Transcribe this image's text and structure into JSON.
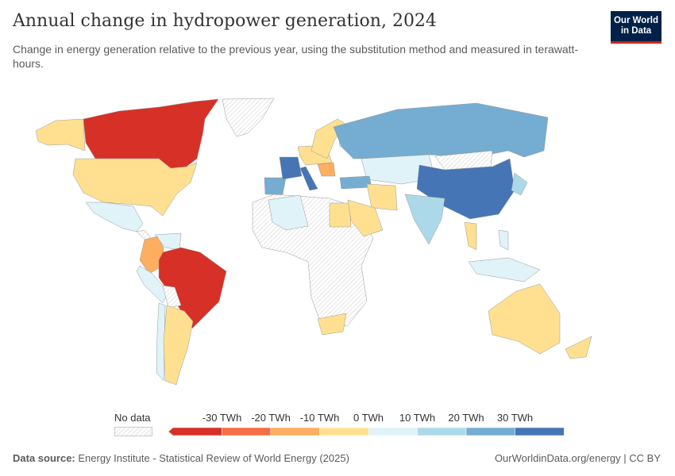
{
  "header": {
    "title": "Annual change in hydropower generation, 2024",
    "subtitle": "Change in energy generation relative to the previous year, using the substitution method and measured in terawatt-hours."
  },
  "logo": {
    "line1": "Our World",
    "line2": "in Data",
    "bg": "#002147",
    "accent": "#ce261e"
  },
  "legend": {
    "no_data": "No data",
    "ticks": [
      "-30 TWh",
      "-20 TWh",
      "-10 TWh",
      "0 TWh",
      "10 TWh",
      "20 TWh",
      "30 TWh"
    ],
    "bins": [
      "#d73027",
      "#f46d43",
      "#fdae61",
      "#fee090",
      "#e0f3f8",
      "#abd9e9",
      "#74add1",
      "#4575b4"
    ]
  },
  "map_fills": {
    "Canada": 0,
    "Brazil": 0,
    "Colombia": 2,
    "Balkans": 2,
    "United States": 3,
    "Alaska": 3,
    "Argentina": 3,
    "Scandinavia": 3,
    "Central Europe": 3,
    "Iran": 3,
    "Saudi Arabia": 3,
    "Egypt": 3,
    "South Africa": 3,
    "Australia": 3,
    "New Zealand": 3,
    "Thailand": 3,
    "Mexico": 4,
    "Venezuela": 4,
    "Peru": 4,
    "Chile": 4,
    "Algeria": 4,
    "Kazakhstan": 4,
    "Indonesia": 4,
    "Philippines": 4,
    "Finland": 4,
    "India": 5,
    "Japan": 5,
    "Russia": 6,
    "Spain": 6,
    "Turkey": 6,
    "Greenland-coast": 6,
    "China": 7,
    "France": 7,
    "Italy": 7
  },
  "footer": {
    "source_label": "Data source:",
    "source": "Energy Institute - Statistical Review of World Energy (2025)",
    "right": "OurWorldinData.org/energy | CC BY"
  }
}
